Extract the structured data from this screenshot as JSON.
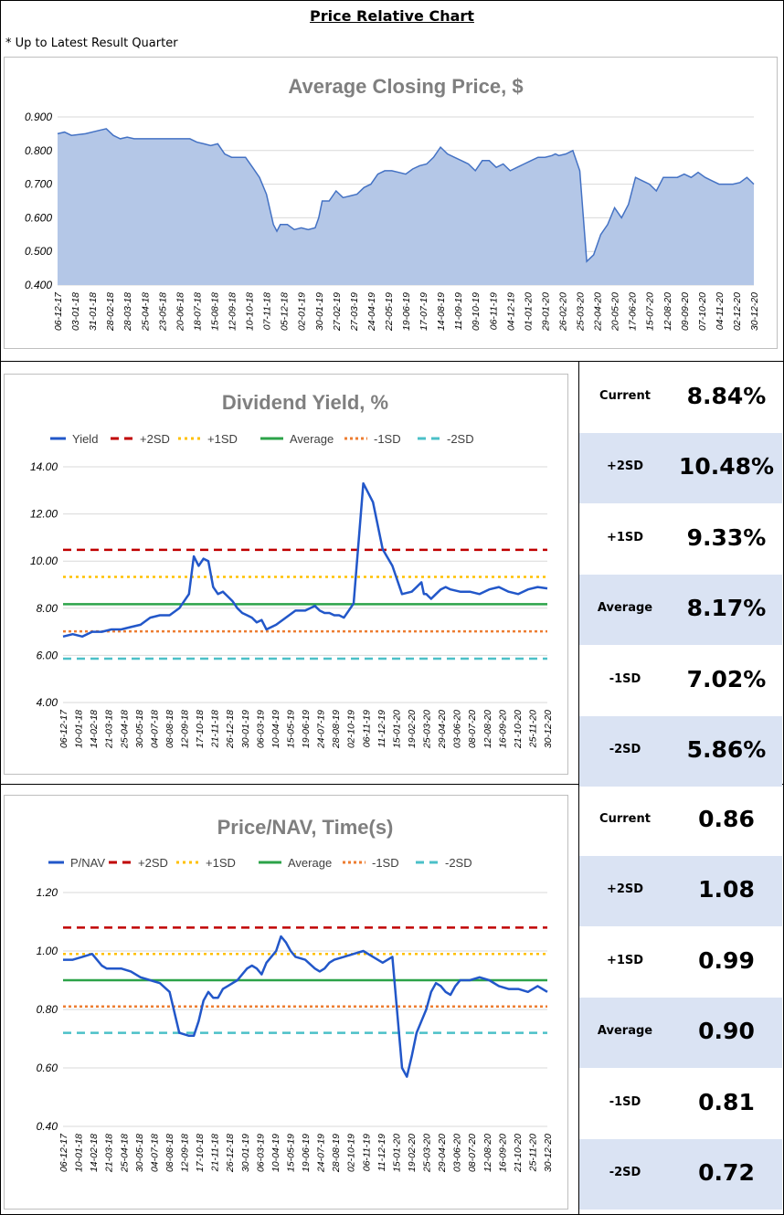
{
  "page": {
    "title": "Price Relative Chart",
    "subtitle": "* Up to Latest Result Quarter"
  },
  "colors": {
    "price_fill": "#b4c7e7",
    "price_line": "#4472c4",
    "series_line": "#2257c9",
    "plus2sd": "#c00000",
    "plus1sd": "#ffc000",
    "average": "#2ca349",
    "minus1sd": "#ed7d31",
    "minus2sd": "#4bc0c8",
    "alt_row": "#dae3f3"
  },
  "price_chart": {
    "title": "Average Closing Price, $",
    "x_tick_labels": [
      "06-12-17",
      "03-01-18",
      "31-01-18",
      "28-02-18",
      "28-03-18",
      "25-04-18",
      "23-05-18",
      "20-06-18",
      "18-07-18",
      "15-08-18",
      "12-09-18",
      "10-10-18",
      "07-11-18",
      "05-12-18",
      "02-01-19",
      "30-01-19",
      "27-02-19",
      "27-03-19",
      "24-04-19",
      "22-05-19",
      "19-06-19",
      "17-07-19",
      "14-08-19",
      "11-09-19",
      "09-10-19",
      "06-11-19",
      "04-12-19",
      "01-01-20",
      "29-01-20",
      "26-02-20",
      "25-03-20",
      "22-04-20",
      "20-05-20",
      "17-06-20",
      "15-07-20",
      "12-08-20",
      "09-09-20",
      "07-10-20",
      "04-11-20",
      "02-12-20",
      "30-12-20"
    ],
    "y_tick_labels": [
      "0.900",
      "0.800",
      "0.700",
      "0.600",
      "0.500",
      "0.400"
    ]
  },
  "yield_chart": {
    "title": "Dividend Yield, %",
    "legend": [
      "Yield",
      "+2SD",
      "+1SD",
      "Average",
      "-1SD",
      "-2SD"
    ],
    "x_tick_labels": [
      "06-12-17",
      "10-01-18",
      "14-02-18",
      "21-03-18",
      "25-04-18",
      "30-05-18",
      "04-07-18",
      "08-08-18",
      "12-09-18",
      "17-10-18",
      "21-11-18",
      "26-12-18",
      "30-01-19",
      "06-03-19",
      "10-04-19",
      "15-05-19",
      "19-06-19",
      "24-07-19",
      "28-08-19",
      "02-10-19",
      "06-11-19",
      "11-12-19",
      "15-01-20",
      "19-02-20",
      "25-03-20",
      "29-04-20",
      "03-06-20",
      "08-07-20",
      "12-08-20",
      "16-09-20",
      "21-10-20",
      "25-11-20",
      "30-12-20"
    ],
    "y_tick_labels": [
      "14.00",
      "12.00",
      "10.00",
      "8.00",
      "6.00",
      "4.00"
    ]
  },
  "pnav_chart": {
    "title": "Price/NAV, Time(s)",
    "legend": [
      "P/NAV",
      "+2SD",
      "+1SD",
      "Average",
      "-1SD",
      "-2SD"
    ],
    "x_tick_labels": [
      "06-12-17",
      "10-01-18",
      "14-02-18",
      "21-03-18",
      "25-04-18",
      "30-05-18",
      "04-07-18",
      "08-08-18",
      "12-09-18",
      "17-10-18",
      "21-11-18",
      "26-12-18",
      "30-01-19",
      "06-03-19",
      "10-04-19",
      "15-05-19",
      "19-06-19",
      "24-07-19",
      "28-08-19",
      "02-10-19",
      "06-11-19",
      "11-12-19",
      "15-01-20",
      "19-02-20",
      "25-03-20",
      "29-04-20",
      "03-06-20",
      "08-07-20",
      "12-08-20",
      "16-09-20",
      "21-10-20",
      "25-11-20",
      "30-12-20"
    ],
    "y_tick_labels": [
      "1.20",
      "1.00",
      "0.80",
      "0.60",
      "0.40"
    ]
  },
  "yield_stats": [
    {
      "label": "Current",
      "value": "8.84%"
    },
    {
      "label": "+2SD",
      "value": "10.48%"
    },
    {
      "label": "+1SD",
      "value": "9.33%"
    },
    {
      "label": "Average",
      "value": "8.17%"
    },
    {
      "label": "-1SD",
      "value": "7.02%"
    },
    {
      "label": "-2SD",
      "value": "5.86%"
    }
  ],
  "pnav_stats": [
    {
      "label": "Current",
      "value": "0.86"
    },
    {
      "label": "+2SD",
      "value": "1.08"
    },
    {
      "label": "+1SD",
      "value": "0.99"
    },
    {
      "label": "Average",
      "value": "0.90"
    },
    {
      "label": "-1SD",
      "value": "0.81"
    },
    {
      "label": "-2SD",
      "value": "0.72"
    }
  ],
  "chart_data": [
    {
      "type": "area",
      "title": "Average Closing Price, $",
      "ylim": [
        0.4,
        0.9
      ],
      "x_range": [
        "06-12-17",
        "30-12-20"
      ],
      "series": [
        {
          "name": "",
          "x": [
            0,
            0.01,
            0.02,
            0.04,
            0.06,
            0.07,
            0.08,
            0.09,
            0.1,
            0.11,
            0.13,
            0.15,
            0.17,
            0.19,
            0.2,
            0.21,
            0.22,
            0.23,
            0.24,
            0.25,
            0.27,
            0.28,
            0.29,
            0.3,
            0.31,
            0.315,
            0.32,
            0.33,
            0.34,
            0.35,
            0.36,
            0.37,
            0.375,
            0.38,
            0.39,
            0.4,
            0.41,
            0.42,
            0.43,
            0.44,
            0.45,
            0.46,
            0.47,
            0.48,
            0.49,
            0.5,
            0.51,
            0.52,
            0.53,
            0.54,
            0.55,
            0.56,
            0.57,
            0.58,
            0.59,
            0.6,
            0.61,
            0.62,
            0.63,
            0.64,
            0.65,
            0.66,
            0.67,
            0.68,
            0.69,
            0.7,
            0.71,
            0.715,
            0.72,
            0.73,
            0.74,
            0.75,
            0.76,
            0.77,
            0.78,
            0.79,
            0.8,
            0.81,
            0.82,
            0.83,
            0.84,
            0.85,
            0.86,
            0.87,
            0.88,
            0.89,
            0.9,
            0.91,
            0.92,
            0.93,
            0.94,
            0.95,
            0.96,
            0.97,
            0.98,
            0.99,
            1.0
          ],
          "values": [
            0.85,
            0.855,
            0.845,
            0.85,
            0.86,
            0.865,
            0.845,
            0.835,
            0.84,
            0.835,
            0.835,
            0.835,
            0.835,
            0.835,
            0.825,
            0.82,
            0.815,
            0.82,
            0.79,
            0.78,
            0.78,
            0.75,
            0.72,
            0.67,
            0.58,
            0.56,
            0.58,
            0.58,
            0.565,
            0.57,
            0.565,
            0.57,
            0.6,
            0.65,
            0.65,
            0.68,
            0.66,
            0.665,
            0.67,
            0.69,
            0.7,
            0.73,
            0.74,
            0.74,
            0.735,
            0.73,
            0.745,
            0.755,
            0.76,
            0.78,
            0.81,
            0.79,
            0.78,
            0.77,
            0.76,
            0.74,
            0.77,
            0.77,
            0.75,
            0.76,
            0.74,
            0.75,
            0.76,
            0.77,
            0.78,
            0.78,
            0.785,
            0.79,
            0.785,
            0.79,
            0.8,
            0.74,
            0.47,
            0.49,
            0.55,
            0.58,
            0.63,
            0.6,
            0.64,
            0.72,
            0.71,
            0.7,
            0.68,
            0.72,
            0.72,
            0.72,
            0.73,
            0.72,
            0.735,
            0.72,
            0.71,
            0.7,
            0.7,
            0.7,
            0.705,
            0.72,
            0.7
          ]
        }
      ]
    },
    {
      "type": "line",
      "title": "Dividend Yield, %",
      "ylim": [
        4,
        14
      ],
      "x_range": [
        "06-12-17",
        "30-12-20"
      ],
      "series": [
        {
          "name": "Yield",
          "x": [
            0,
            0.02,
            0.04,
            0.06,
            0.08,
            0.1,
            0.12,
            0.14,
            0.16,
            0.18,
            0.2,
            0.22,
            0.24,
            0.26,
            0.27,
            0.28,
            0.29,
            0.3,
            0.31,
            0.32,
            0.33,
            0.34,
            0.35,
            0.36,
            0.37,
            0.38,
            0.39,
            0.4,
            0.41,
            0.42,
            0.44,
            0.46,
            0.48,
            0.5,
            0.52,
            0.53,
            0.54,
            0.55,
            0.56,
            0.57,
            0.58,
            0.6,
            0.62,
            0.64,
            0.66,
            0.68,
            0.7,
            0.72,
            0.73,
            0.74,
            0.745,
            0.75,
            0.755,
            0.76,
            0.77,
            0.78,
            0.79,
            0.8,
            0.82,
            0.84,
            0.86,
            0.88,
            0.9,
            0.92,
            0.94,
            0.96,
            0.98,
            1.0
          ],
          "values": [
            6.8,
            6.9,
            6.8,
            7.0,
            7.0,
            7.1,
            7.1,
            7.2,
            7.3,
            7.6,
            7.7,
            7.7,
            8.0,
            8.6,
            10.2,
            9.8,
            10.1,
            10.0,
            8.9,
            8.6,
            8.7,
            8.5,
            8.3,
            8.0,
            7.8,
            7.7,
            7.6,
            7.4,
            7.5,
            7.1,
            7.3,
            7.6,
            7.9,
            7.9,
            8.1,
            7.9,
            7.8,
            7.8,
            7.7,
            7.7,
            7.6,
            8.2,
            13.3,
            12.5,
            10.5,
            9.8,
            8.6,
            8.7,
            8.9,
            9.1,
            8.6,
            8.6,
            8.5,
            8.4,
            8.6,
            8.8,
            8.9,
            8.8,
            8.7,
            8.7,
            8.6,
            8.8,
            8.9,
            8.7,
            8.6,
            8.8,
            8.9,
            8.84
          ]
        },
        {
          "name": "+2SD",
          "values": [
            10.48
          ]
        },
        {
          "name": "+1SD",
          "values": [
            9.33
          ]
        },
        {
          "name": "Average",
          "values": [
            8.17
          ]
        },
        {
          "name": "-1SD",
          "values": [
            7.02
          ]
        },
        {
          "name": "-2SD",
          "values": [
            5.86
          ]
        }
      ]
    },
    {
      "type": "line",
      "title": "Price/NAV, Time(s)",
      "ylim": [
        0.4,
        1.2
      ],
      "x_range": [
        "06-12-17",
        "30-12-20"
      ],
      "series": [
        {
          "name": "P/NAV",
          "x": [
            0,
            0.02,
            0.04,
            0.06,
            0.07,
            0.08,
            0.09,
            0.1,
            0.12,
            0.14,
            0.16,
            0.18,
            0.2,
            0.22,
            0.24,
            0.26,
            0.27,
            0.28,
            0.29,
            0.3,
            0.31,
            0.32,
            0.33,
            0.34,
            0.35,
            0.36,
            0.37,
            0.38,
            0.39,
            0.4,
            0.41,
            0.42,
            0.43,
            0.44,
            0.45,
            0.46,
            0.47,
            0.48,
            0.5,
            0.52,
            0.53,
            0.54,
            0.55,
            0.56,
            0.58,
            0.6,
            0.62,
            0.64,
            0.66,
            0.68,
            0.7,
            0.71,
            0.72,
            0.73,
            0.74,
            0.75,
            0.76,
            0.77,
            0.78,
            0.79,
            0.8,
            0.81,
            0.82,
            0.84,
            0.86,
            0.88,
            0.9,
            0.92,
            0.94,
            0.96,
            0.98,
            1.0
          ],
          "values": [
            0.97,
            0.97,
            0.98,
            0.99,
            0.97,
            0.95,
            0.94,
            0.94,
            0.94,
            0.93,
            0.91,
            0.9,
            0.89,
            0.86,
            0.72,
            0.71,
            0.71,
            0.76,
            0.83,
            0.86,
            0.84,
            0.84,
            0.87,
            0.88,
            0.89,
            0.9,
            0.92,
            0.94,
            0.95,
            0.94,
            0.92,
            0.96,
            0.98,
            1.0,
            1.05,
            1.03,
            1.0,
            0.98,
            0.97,
            0.94,
            0.93,
            0.94,
            0.96,
            0.97,
            0.98,
            0.99,
            1.0,
            0.98,
            0.96,
            0.98,
            0.6,
            0.57,
            0.64,
            0.72,
            0.76,
            0.8,
            0.86,
            0.89,
            0.88,
            0.86,
            0.85,
            0.88,
            0.9,
            0.9,
            0.91,
            0.9,
            0.88,
            0.87,
            0.87,
            0.86,
            0.88,
            0.86
          ]
        },
        {
          "name": "+2SD",
          "values": [
            1.08
          ]
        },
        {
          "name": "+1SD",
          "values": [
            0.99
          ]
        },
        {
          "name": "Average",
          "values": [
            0.9
          ]
        },
        {
          "name": "-1SD",
          "values": [
            0.81
          ]
        },
        {
          "name": "-2SD",
          "values": [
            0.72
          ]
        }
      ]
    }
  ]
}
